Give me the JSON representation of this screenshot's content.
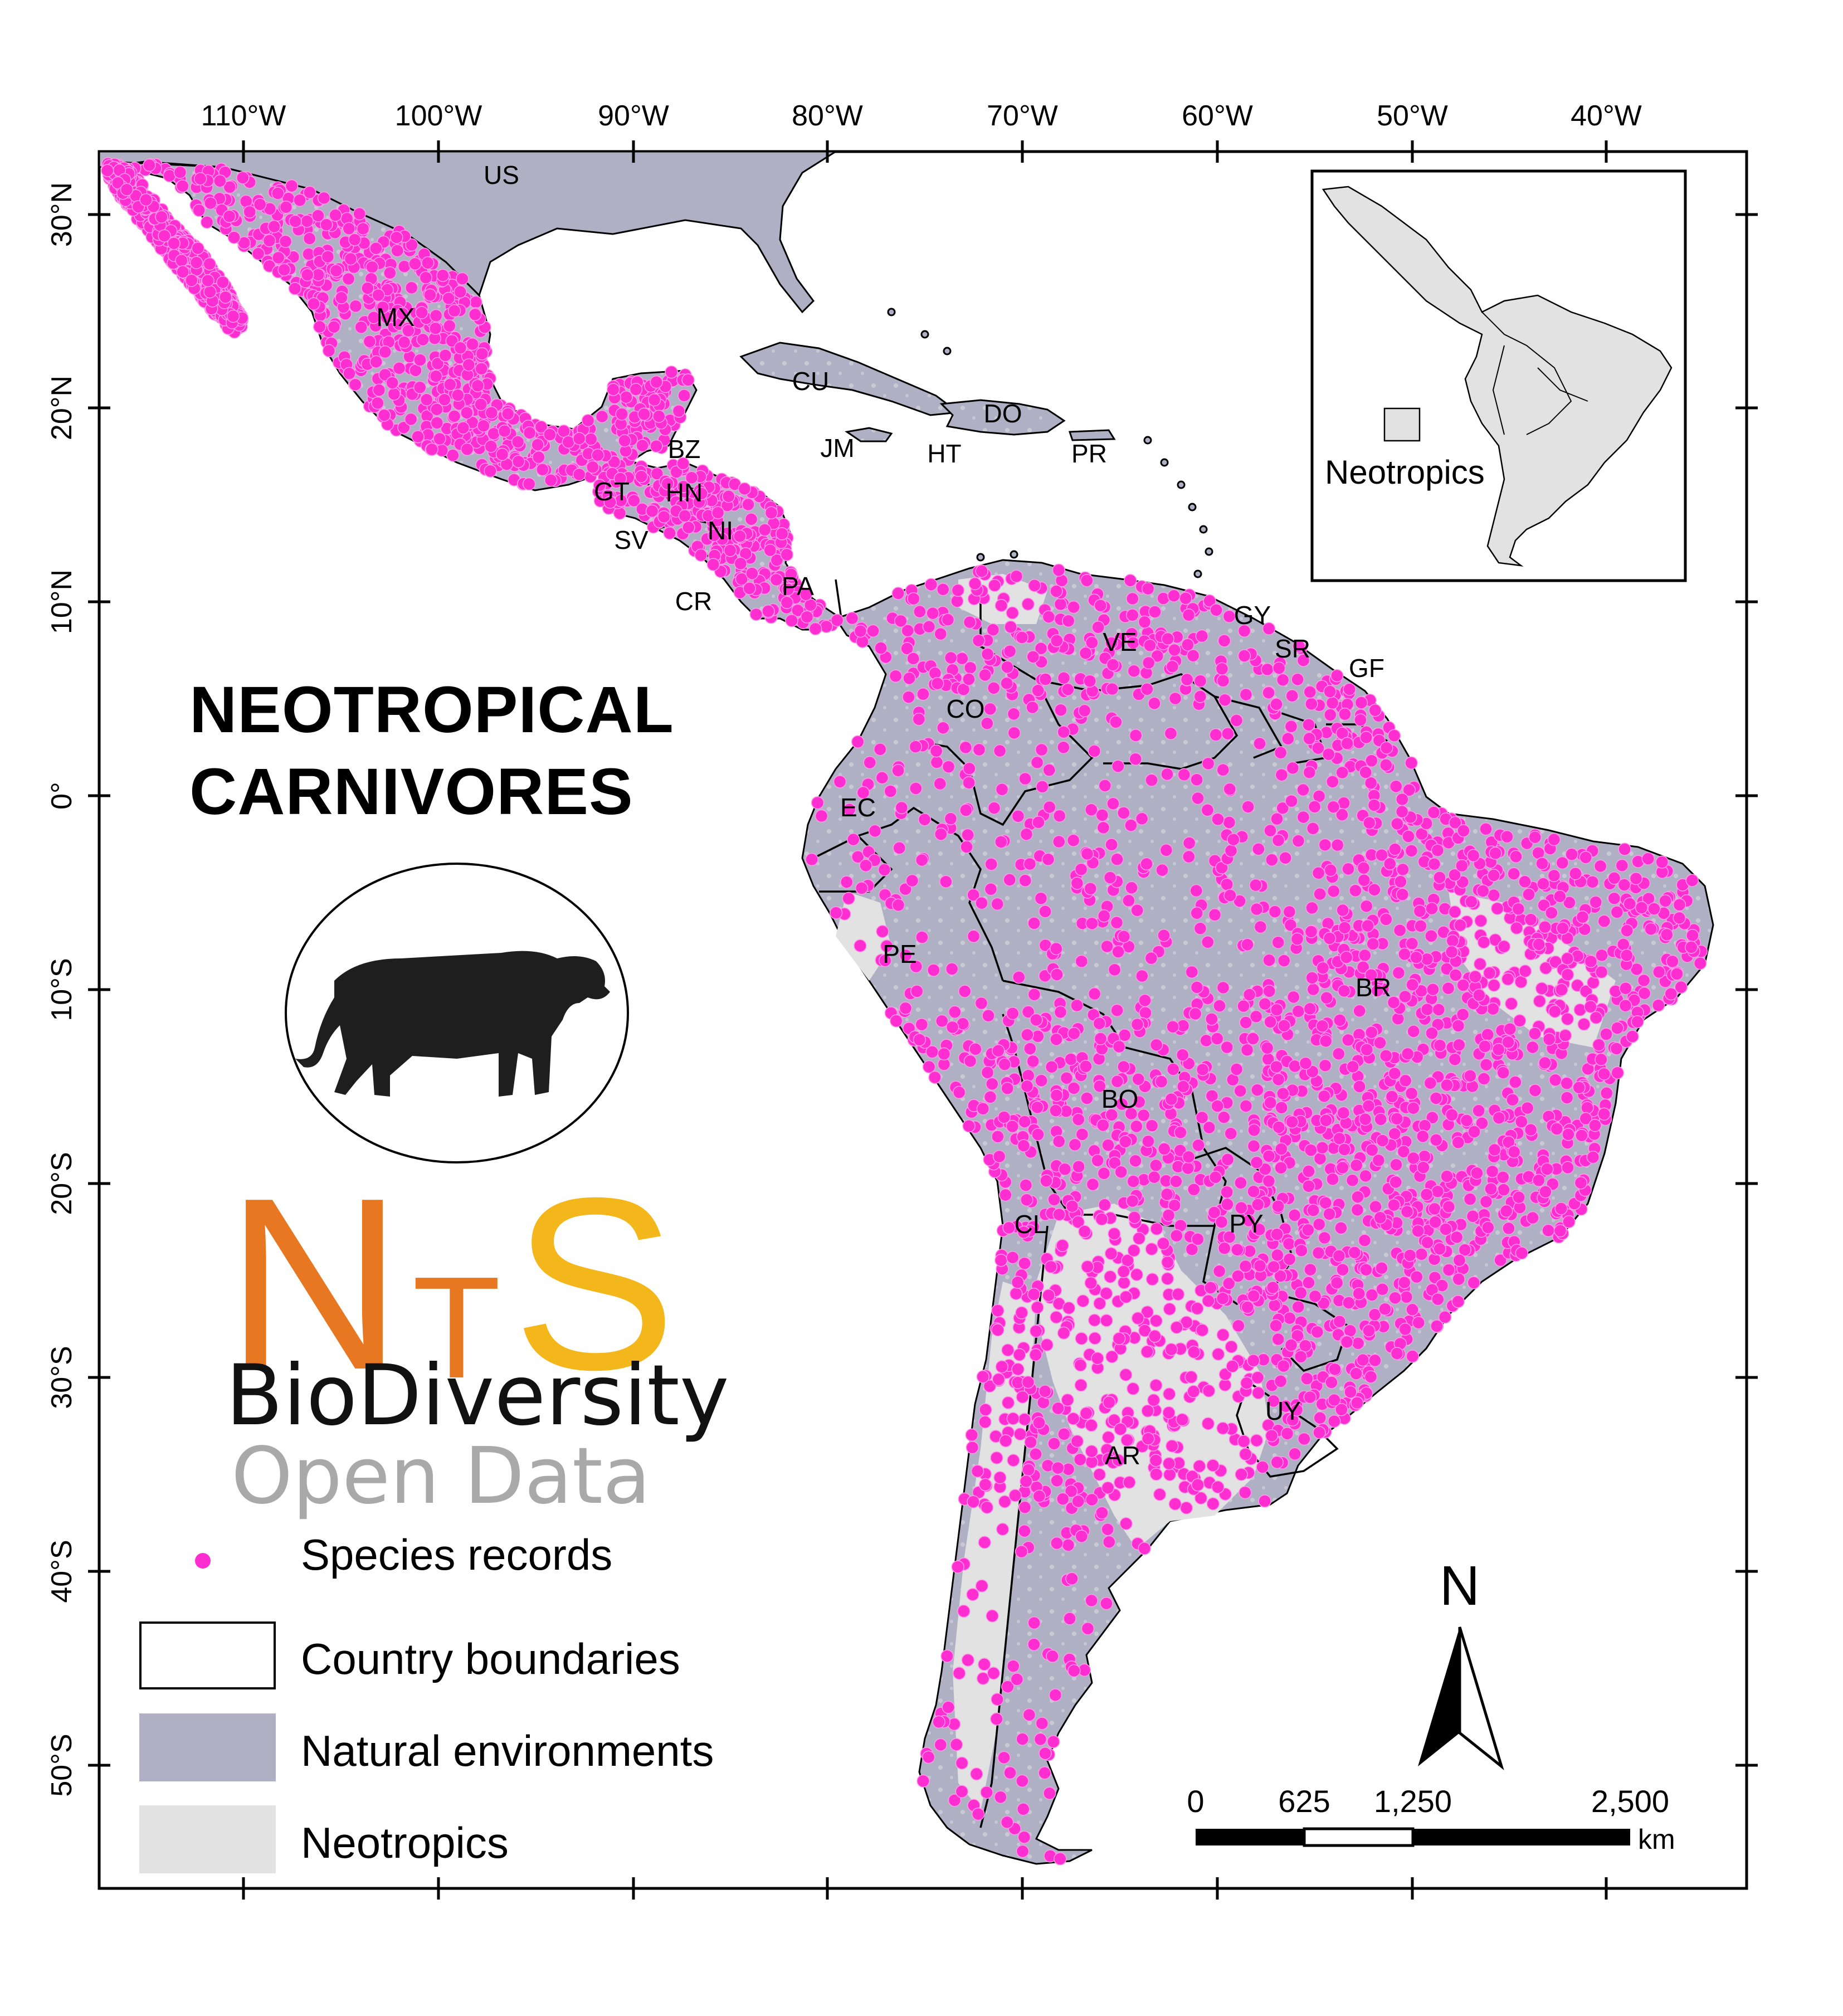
{
  "title": {
    "line1": "NEOTROPICAL",
    "line2": "CARNIVORES"
  },
  "logo": {
    "letter_n": "N",
    "letter_t": "T",
    "letter_s": "S",
    "line_biodiversity": "BioDiversity",
    "line_open_data": "Open Data",
    "colors": {
      "n_t": "#e87722",
      "s": "#f4b71b",
      "open_data": "#a9a9a9"
    },
    "icon": "jaguar-silhouette-icon"
  },
  "axes": {
    "top_labels": [
      "110°W",
      "100°W",
      "90°W",
      "80°W",
      "70°W",
      "60°W",
      "50°W",
      "40°W"
    ],
    "left_labels": [
      "30°N",
      "20°N",
      "10°N",
      "0°",
      "10°S",
      "20°S",
      "30°S",
      "40°S",
      "50°S"
    ]
  },
  "country_labels": [
    "US",
    "MX",
    "CU",
    "DO",
    "JM",
    "HT",
    "PR",
    "BZ",
    "GT",
    "HN",
    "SV",
    "NI",
    "CR",
    "PA",
    "GY",
    "SR",
    "GF",
    "VE",
    "CO",
    "EC",
    "PE",
    "BR",
    "BO",
    "PY",
    "CL",
    "AR",
    "UY"
  ],
  "inset": {
    "label": "Neotropics"
  },
  "legend": [
    {
      "label": "Species records",
      "symbol": "dot",
      "color": "#ff2ed1"
    },
    {
      "label": "Country boundaries",
      "symbol": "outline",
      "color": "#000000"
    },
    {
      "label": "Natural environments",
      "symbol": "fill",
      "color": "#b0b0c4"
    },
    {
      "label": "Neotropics",
      "symbol": "fill",
      "color": "#e2e2e2"
    }
  ],
  "north_arrow": {
    "label": "N"
  },
  "scale_bar": {
    "ticks": [
      "0",
      "625",
      "1,250",
      "2,500"
    ],
    "unit": "km"
  },
  "colors": {
    "records": "#ff2ed1",
    "natural": "#b0b0c4",
    "neotropics": "#e2e2e2"
  }
}
